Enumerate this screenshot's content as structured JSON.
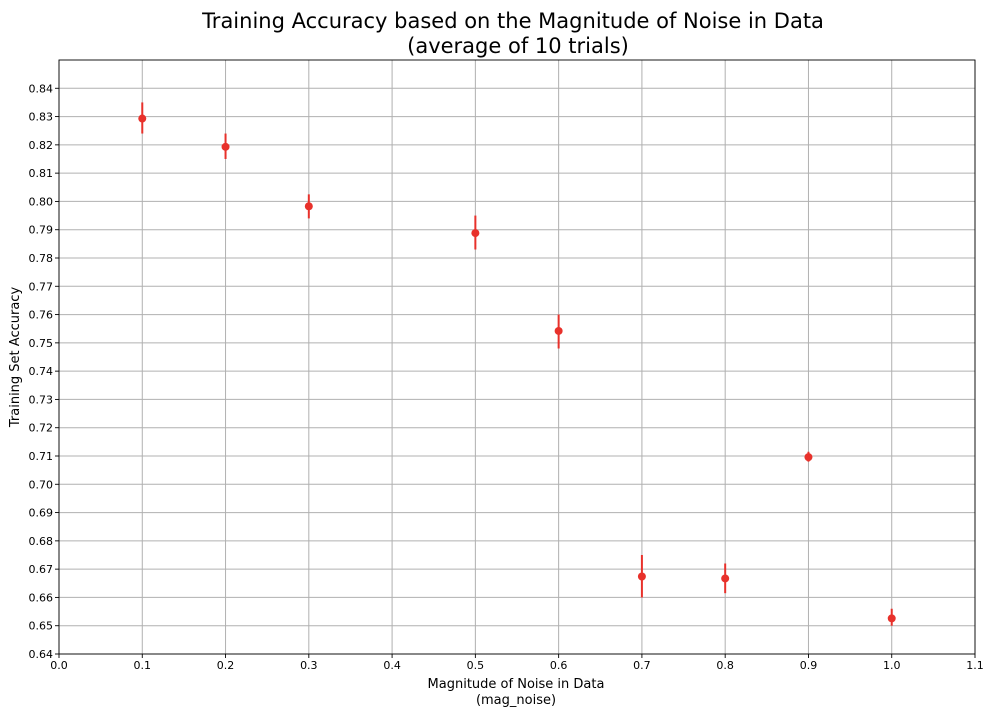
{
  "chart_data": {
    "type": "scatter",
    "title": "Training Accuracy based on the Magnitude of Noise in Data",
    "subtitle": "(average of 10 trials)",
    "xlabel": "Magnitude of Noise in Data",
    "xlabel_sub": "(mag_noise)",
    "ylabel": "Training Set Accuracy",
    "xlim": [
      0.0,
      1.1
    ],
    "ylim": [
      0.64,
      0.85
    ],
    "xticks": [
      "0.0",
      "0.1",
      "0.2",
      "0.3",
      "0.4",
      "0.5",
      "0.6",
      "0.7",
      "0.8",
      "0.9",
      "1.0",
      "1.1"
    ],
    "yticks": [
      "0.64",
      "0.65",
      "0.66",
      "0.67",
      "0.68",
      "0.69",
      "0.70",
      "0.71",
      "0.72",
      "0.73",
      "0.74",
      "0.75",
      "0.76",
      "0.77",
      "0.78",
      "0.79",
      "0.80",
      "0.81",
      "0.82",
      "0.83",
      "0.84"
    ],
    "grid": true,
    "color": "#e8312b",
    "points": [
      {
        "x": 0.1,
        "y": 0.8293,
        "err_low": 0.824,
        "err_high": 0.835
      },
      {
        "x": 0.2,
        "y": 0.8193,
        "err_low": 0.815,
        "err_high": 0.824
      },
      {
        "x": 0.3,
        "y": 0.7983,
        "err_low": 0.794,
        "err_high": 0.8025
      },
      {
        "x": 0.5,
        "y": 0.7888,
        "err_low": 0.783,
        "err_high": 0.795
      },
      {
        "x": 0.6,
        "y": 0.7542,
        "err_low": 0.748,
        "err_high": 0.76
      },
      {
        "x": 0.7,
        "y": 0.6674,
        "err_low": 0.66,
        "err_high": 0.675
      },
      {
        "x": 0.8,
        "y": 0.6667,
        "err_low": 0.6615,
        "err_high": 0.672
      },
      {
        "x": 0.9,
        "y": 0.7096,
        "err_low": 0.708,
        "err_high": 0.7115
      },
      {
        "x": 1.0,
        "y": 0.6526,
        "err_low": 0.65,
        "err_high": 0.656
      }
    ]
  }
}
